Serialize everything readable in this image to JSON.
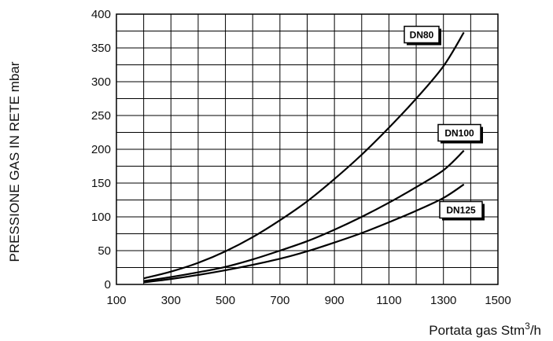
{
  "chart_data": {
    "type": "line",
    "xlabel": "Portata gas Stm",
    "xlabel_sup": "3",
    "xlabel_suffix": "/h",
    "ylabel": "PRESSIONE GAS IN RETE mbar",
    "xlim": [
      100,
      1500
    ],
    "ylim": [
      0,
      400
    ],
    "x_ticks": [
      100,
      300,
      500,
      700,
      900,
      1100,
      1300,
      1500
    ],
    "y_ticks": [
      0,
      50,
      100,
      150,
      200,
      250,
      300,
      350,
      400
    ],
    "grid": true,
    "series": [
      {
        "name": "DN80",
        "x": [
          200,
          300,
          400,
          500,
          600,
          700,
          800,
          900,
          1000,
          1100,
          1200,
          1300,
          1375
        ],
        "y": [
          9,
          19,
          32,
          49,
          70,
          95,
          123,
          156,
          192,
          232,
          275,
          323,
          373
        ]
      },
      {
        "name": "DN100",
        "x": [
          200,
          300,
          400,
          500,
          600,
          700,
          800,
          900,
          1000,
          1100,
          1200,
          1300,
          1375
        ],
        "y": [
          5,
          11,
          18,
          26,
          37,
          50,
          64,
          81,
          100,
          121,
          144,
          169,
          198
        ]
      },
      {
        "name": "DN125",
        "x": [
          200,
          300,
          400,
          500,
          600,
          700,
          800,
          900,
          1000,
          1100,
          1200,
          1300,
          1375
        ],
        "y": [
          3,
          8,
          14,
          21,
          29,
          38,
          49,
          62,
          76,
          92,
          109,
          128,
          148
        ]
      }
    ]
  }
}
